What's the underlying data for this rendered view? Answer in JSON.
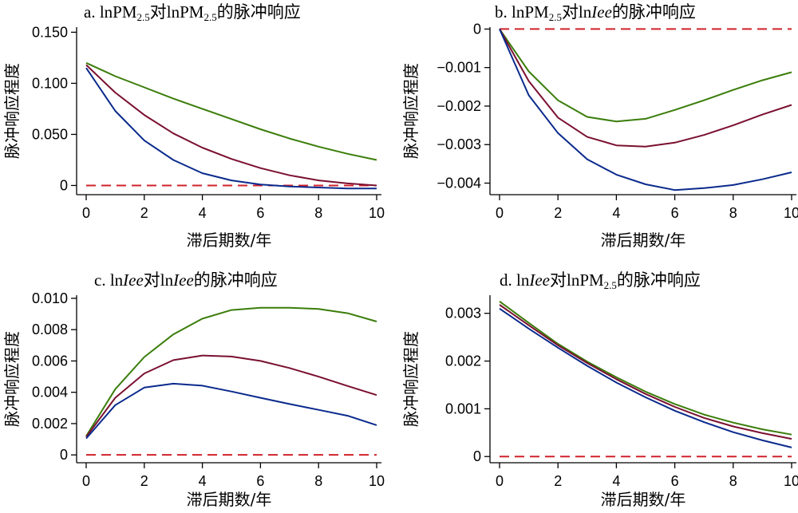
{
  "colors": {
    "upper": "#3a7d0a",
    "mid": "#7a1030",
    "lower": "#0a2a8c",
    "zero_line": "#d0222b"
  },
  "chart_data": [
    {
      "type": "line",
      "title": "a. lnPM2.5对lnPM2.5的脉冲响应",
      "title_parts": [
        {
          "t": "a. lnPM"
        },
        {
          "t": "2.5",
          "sub": true
        },
        {
          "t": "对lnPM"
        },
        {
          "t": "2.5",
          "sub": true
        },
        {
          "t": "的脉冲响应"
        }
      ],
      "xlabel": "滞后期数/年",
      "ylabel": "脉冲响应程度",
      "x": [
        0,
        1,
        2,
        3,
        4,
        5,
        6,
        7,
        8,
        9,
        10
      ],
      "xticks": [
        0,
        2,
        4,
        6,
        8,
        10
      ],
      "xtick_labels": [
        "0",
        "2",
        "4",
        "6",
        "8",
        "10"
      ],
      "yticks": [
        0,
        0.05,
        0.1,
        0.15
      ],
      "ytick_labels": [
        "0",
        "0.050",
        "0.100",
        "0.150"
      ],
      "xlim": [
        0,
        10
      ],
      "ylim": [
        -0.009,
        0.155
      ],
      "zero_line": 0,
      "series": [
        {
          "role": "upper",
          "values": [
            0.12,
            0.107,
            0.096,
            0.085,
            0.075,
            0.065,
            0.055,
            0.046,
            0.038,
            0.031,
            0.025
          ]
        },
        {
          "role": "mid",
          "values": [
            0.118,
            0.091,
            0.069,
            0.051,
            0.037,
            0.026,
            0.017,
            0.01,
            0.005,
            0.002,
            0.0
          ]
        },
        {
          "role": "lower",
          "values": [
            0.115,
            0.073,
            0.044,
            0.025,
            0.012,
            0.005,
            0.001,
            -0.001,
            -0.002,
            -0.003,
            -0.003
          ]
        }
      ]
    },
    {
      "type": "line",
      "title": "b. lnPM2.5对lnIee的脉冲响应",
      "title_parts": [
        {
          "t": "b. lnPM"
        },
        {
          "t": "2.5",
          "sub": true
        },
        {
          "t": "对ln"
        },
        {
          "t": "Iee",
          "italic": true
        },
        {
          "t": "的脉冲响应"
        }
      ],
      "xlabel": "滞后期数/年",
      "ylabel": "脉冲响应程度",
      "x": [
        0,
        1,
        2,
        3,
        4,
        5,
        6,
        7,
        8,
        9,
        10
      ],
      "xticks": [
        0,
        2,
        4,
        6,
        8,
        10
      ],
      "xtick_labels": [
        "0",
        "2",
        "4",
        "6",
        "8",
        "10"
      ],
      "yticks": [
        0,
        -0.001,
        -0.002,
        -0.003,
        -0.004
      ],
      "ytick_labels": [
        "0",
        "−0.001",
        "−0.002",
        "−0.003",
        "−0.004"
      ],
      "xlim": [
        0,
        10
      ],
      "ylim": [
        -0.0043,
        5e-05
      ],
      "zero_line": 0,
      "series": [
        {
          "role": "upper",
          "values": [
            0,
            -0.0011,
            -0.00185,
            -0.00228,
            -0.0024,
            -0.00233,
            -0.0021,
            -0.00185,
            -0.00158,
            -0.00133,
            -0.00112
          ]
        },
        {
          "role": "mid",
          "values": [
            0,
            -0.00135,
            -0.0023,
            -0.0028,
            -0.00302,
            -0.00305,
            -0.00295,
            -0.00275,
            -0.0025,
            -0.00222,
            -0.00197
          ]
        },
        {
          "role": "lower",
          "values": [
            0,
            -0.00172,
            -0.0027,
            -0.00338,
            -0.00378,
            -0.00403,
            -0.00418,
            -0.00413,
            -0.00405,
            -0.0039,
            -0.00372
          ]
        }
      ]
    },
    {
      "type": "line",
      "title": "c. lnIee对lnIee的脉冲响应",
      "title_parts": [
        {
          "t": "c. ln"
        },
        {
          "t": "Iee",
          "italic": true
        },
        {
          "t": "对ln"
        },
        {
          "t": "Iee",
          "italic": true
        },
        {
          "t": "的脉冲响应"
        }
      ],
      "xlabel": "滞后期数/年",
      "ylabel": "脉冲响应程度",
      "x": [
        0,
        1,
        2,
        3,
        4,
        5,
        6,
        7,
        8,
        9,
        10
      ],
      "xticks": [
        0,
        2,
        4,
        6,
        8,
        10
      ],
      "xtick_labels": [
        "0",
        "2",
        "4",
        "6",
        "8",
        "10"
      ],
      "yticks": [
        0,
        0.002,
        0.004,
        0.006,
        0.008,
        0.01
      ],
      "ytick_labels": [
        "0",
        "0.002",
        "0.004",
        "0.006",
        "0.008",
        "0.010"
      ],
      "xlim": [
        0,
        10
      ],
      "ylim": [
        -0.0005,
        0.0102
      ],
      "zero_line": 0,
      "series": [
        {
          "role": "upper",
          "values": [
            0.0012,
            0.0042,
            0.00625,
            0.0077,
            0.0087,
            0.00925,
            0.0094,
            0.0094,
            0.00932,
            0.00905,
            0.00852
          ]
        },
        {
          "role": "mid",
          "values": [
            0.00115,
            0.00365,
            0.0052,
            0.00605,
            0.00635,
            0.00628,
            0.006,
            0.00555,
            0.005,
            0.0044,
            0.00382
          ]
        },
        {
          "role": "lower",
          "values": [
            0.00105,
            0.00318,
            0.0043,
            0.00455,
            0.00442,
            0.00405,
            0.00365,
            0.00325,
            0.00288,
            0.0025,
            0.0019
          ]
        }
      ]
    },
    {
      "type": "line",
      "title": "d. lnIee对lnPM2.5的脉冲响应",
      "title_parts": [
        {
          "t": "d. ln"
        },
        {
          "t": "Iee",
          "italic": true
        },
        {
          "t": "对lnPM"
        },
        {
          "t": "2.5",
          "sub": true
        },
        {
          "t": "的脉冲响应"
        }
      ],
      "xlabel": "滞后期数/年",
      "ylabel": "脉冲响应程度",
      "x": [
        0,
        1,
        2,
        3,
        4,
        5,
        6,
        7,
        8,
        9,
        10
      ],
      "xticks": [
        0,
        2,
        4,
        6,
        8,
        10
      ],
      "xtick_labels": [
        "0",
        "2",
        "4",
        "6",
        "8",
        "10"
      ],
      "yticks": [
        0,
        0.001,
        0.002,
        0.003
      ],
      "ytick_labels": [
        "0",
        "0.001",
        "0.002",
        "0.003"
      ],
      "xlim": [
        0,
        10
      ],
      "ylim": [
        -0.00013,
        0.00338
      ],
      "zero_line": 0,
      "series": [
        {
          "role": "upper",
          "values": [
            0.00325,
            0.0028,
            0.00236,
            0.00199,
            0.00166,
            0.00136,
            0.0011,
            0.00088,
            0.00071,
            0.00057,
            0.00046
          ]
        },
        {
          "role": "mid",
          "values": [
            0.00318,
            0.00275,
            0.00233,
            0.00196,
            0.00162,
            0.00131,
            0.00104,
            0.00081,
            0.00063,
            0.00049,
            0.00037
          ]
        },
        {
          "role": "lower",
          "values": [
            0.0031,
            0.00268,
            0.00228,
            0.0019,
            0.00155,
            0.00124,
            0.00096,
            0.00072,
            0.00051,
            0.00034,
            0.00019
          ]
        }
      ]
    }
  ]
}
